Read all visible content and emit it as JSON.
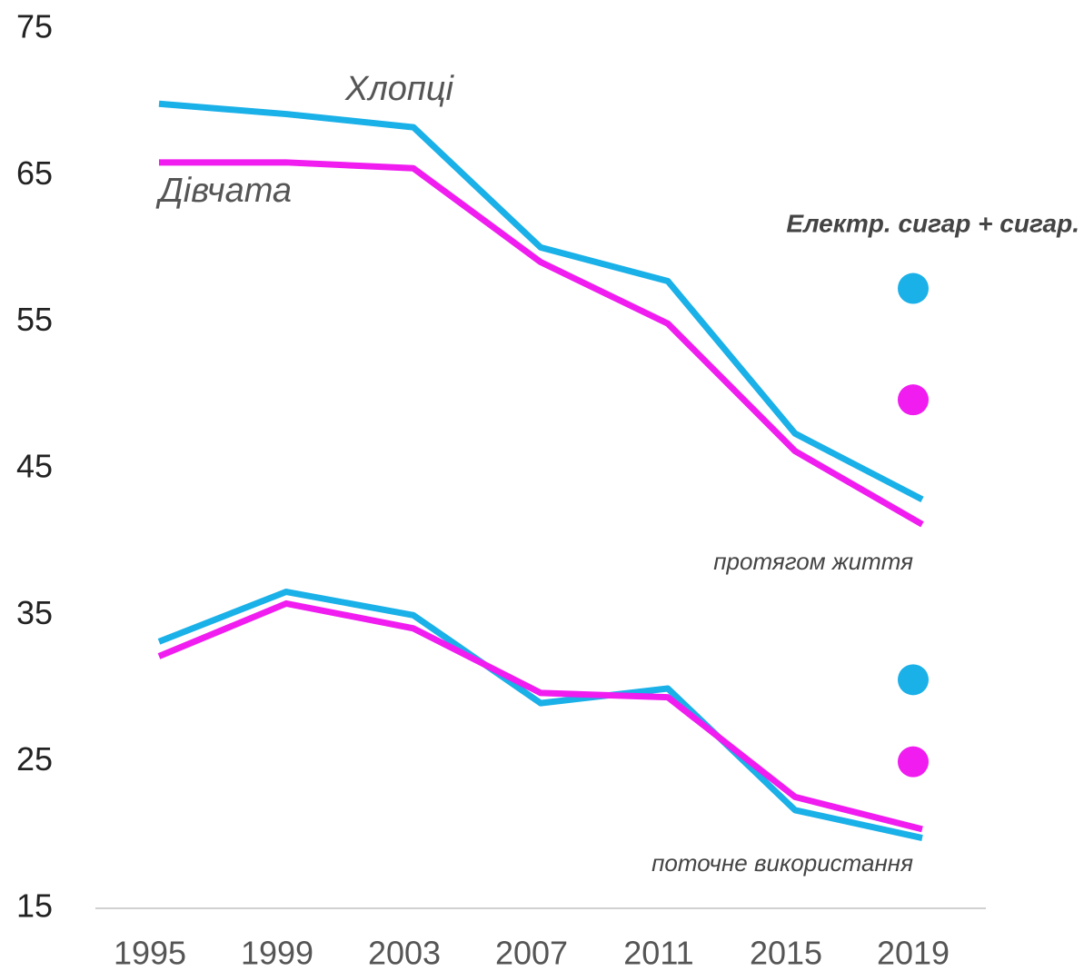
{
  "chart_data": {
    "type": "line",
    "x": [
      1995,
      1999,
      2003,
      2007,
      2011,
      2015,
      2019
    ],
    "xlim": [
      1993,
      2021
    ],
    "xticks": [
      1995,
      1999,
      2003,
      2007,
      2011,
      2015,
      2019
    ],
    "ylim": [
      15,
      75
    ],
    "yticks": [
      15,
      25,
      35,
      45,
      55,
      65,
      75
    ],
    "series": [
      {
        "name": "Хлопці",
        "color": "#1ab0e8",
        "values": [
          69.9,
          69.2,
          68.3,
          60.1,
          57.8,
          47.4,
          42.9
        ]
      },
      {
        "name": "Дівчата",
        "color": "#f01cf0",
        "values": [
          65.9,
          65.9,
          65.5,
          59.1,
          54.9,
          46.2,
          41.2
        ]
      },
      {
        "color": "#1ab0e8",
        "values": [
          33.2,
          36.6,
          35.0,
          29.0,
          30.0,
          21.7,
          19.8
        ]
      },
      {
        "color": "#f01cf0",
        "values": [
          32.2,
          35.8,
          34.1,
          29.7,
          29.4,
          22.6,
          20.4
        ]
      }
    ],
    "annotations": [
      "протягом життя",
      "поточне використання"
    ],
    "markers": {
      "title": "Електр. сигар + сигар.",
      "x": 2019,
      "values": [
        57.3,
        49.7,
        30.6,
        25.0
      ],
      "colors": [
        "#1ab0e8",
        "#f01cf0",
        "#1ab0e8",
        "#f01cf0"
      ]
    }
  }
}
